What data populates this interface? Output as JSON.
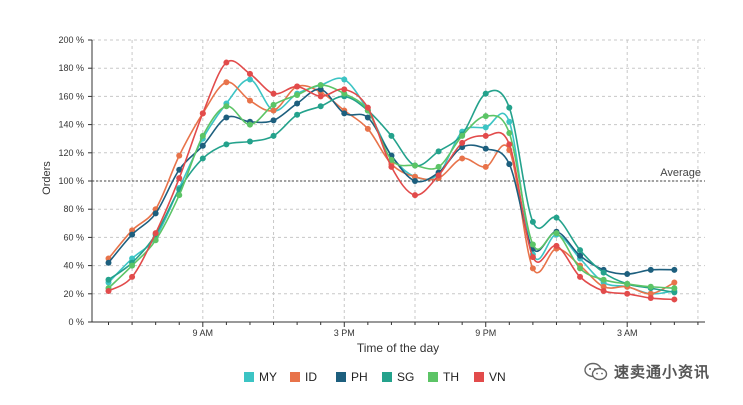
{
  "chart_data": {
    "type": "line",
    "title": "",
    "xlabel": "Time of the day",
    "ylabel": "Orders",
    "ylim": [
      0,
      200
    ],
    "y_ticks": [
      "0 %",
      "20 %",
      "40 %",
      "60 %",
      "80 %",
      "100 %",
      "120 %",
      "140 %",
      "160 %",
      "180 %",
      "200 %"
    ],
    "x_ticks": [
      "9 AM",
      "3 PM",
      "9 PM",
      "3 AM"
    ],
    "x_tick_hours": [
      9,
      15,
      21,
      27
    ],
    "x_range_hours": [
      4.3,
      30.3
    ],
    "x_hours": [
      5,
      6,
      7,
      8,
      9,
      10,
      11,
      12,
      13,
      14,
      15,
      16,
      17,
      18,
      19,
      20,
      21,
      22,
      23,
      24,
      25,
      26,
      27,
      28,
      29
    ],
    "reference_line": {
      "label": "Average",
      "value": 100
    },
    "legend_position": "bottom-center",
    "grid": true,
    "series": [
      {
        "name": "MY",
        "color": "#3cc4c4",
        "values": [
          28,
          45,
          60,
          95,
          130,
          155,
          172,
          150,
          162,
          168,
          172,
          150,
          118,
          103,
          105,
          135,
          138,
          142,
          48,
          62,
          45,
          28,
          25,
          20,
          22
        ]
      },
      {
        "name": "ID",
        "color": "#e8734a",
        "values": [
          45,
          65,
          80,
          118,
          148,
          170,
          157,
          150,
          167,
          163,
          150,
          137,
          112,
          103,
          102,
          116,
          110,
          122,
          38,
          52,
          40,
          25,
          25,
          20,
          28
        ]
      },
      {
        "name": "PH",
        "color": "#1d5f7e",
        "values": [
          42,
          62,
          77,
          108,
          125,
          145,
          142,
          143,
          155,
          165,
          148,
          145,
          118,
          100,
          106,
          124,
          123,
          112,
          52,
          64,
          47,
          37,
          34,
          37,
          37
        ]
      },
      {
        "name": "SG",
        "color": "#24a28c",
        "values": [
          30,
          42,
          62,
          94,
          116,
          126,
          128,
          132,
          147,
          153,
          160,
          150,
          132,
          111,
          121,
          133,
          162,
          152,
          71,
          74,
          51,
          35,
          27,
          24,
          21
        ]
      },
      {
        "name": "TH",
        "color": "#5cc466",
        "values": [
          24,
          40,
          58,
          90,
          132,
          153,
          140,
          154,
          161,
          168,
          162,
          150,
          115,
          111,
          110,
          132,
          146,
          134,
          55,
          63,
          38,
          30,
          27,
          25,
          24
        ]
      },
      {
        "name": "VN",
        "color": "#e24b4b",
        "values": [
          22,
          32,
          63,
          102,
          148,
          184,
          176,
          162,
          167,
          160,
          165,
          152,
          110,
          90,
          104,
          127,
          132,
          126,
          46,
          54,
          32,
          22,
          20,
          17,
          16
        ]
      }
    ]
  },
  "watermark": {
    "text": "速卖通小资讯",
    "icon": "wechat-chat-bubbles-icon"
  }
}
